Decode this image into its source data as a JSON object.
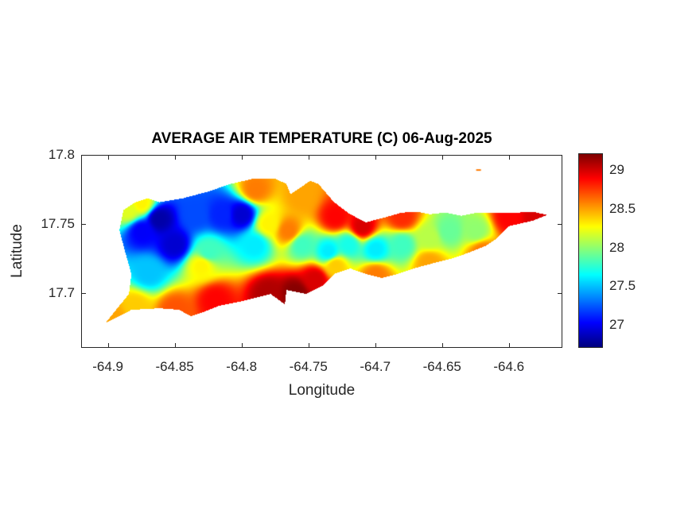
{
  "chart_data": {
    "type": "heatmap",
    "title": "AVERAGE AIR TEMPERATURE (C) 06-Aug-2025",
    "xlabel": "Longitude",
    "ylabel": "Latitude",
    "xlim": [
      -64.92,
      -64.56
    ],
    "ylim": [
      17.66,
      17.8
    ],
    "xticks": [
      -64.9,
      -64.85,
      -64.8,
      -64.75,
      -64.7,
      -64.65,
      -64.6
    ],
    "xtick_labels": [
      "-64.9",
      "-64.85",
      "-64.8",
      "-64.75",
      "-64.7",
      "-64.65",
      "-64.6"
    ],
    "yticks": [
      17.8,
      17.75,
      17.7
    ],
    "ytick_labels": [
      "17.8",
      "17.75",
      "17.7"
    ],
    "colormap": "jet",
    "clim": [
      26.7,
      29.22
    ],
    "colorbar_ticks": [
      29,
      28.5,
      28,
      27.5,
      27
    ],
    "colorbar_tick_labels": [
      "29",
      "28.5",
      "28",
      "27.5",
      "27"
    ],
    "island_outline": [
      [
        -64.9018,
        17.6786
      ],
      [
        -64.8917,
        17.6908
      ],
      [
        -64.8845,
        17.6994
      ],
      [
        -64.8827,
        17.7139
      ],
      [
        -64.8869,
        17.7283
      ],
      [
        -64.8917,
        17.7457
      ],
      [
        -64.8887,
        17.7601
      ],
      [
        -64.8798,
        17.7659
      ],
      [
        -64.8708,
        17.7688
      ],
      [
        -64.8619,
        17.7659
      ],
      [
        -64.8441,
        17.7688
      ],
      [
        -64.8262,
        17.7734
      ],
      [
        -64.8084,
        17.7792
      ],
      [
        -64.7905,
        17.7832
      ],
      [
        -64.7756,
        17.7832
      ],
      [
        -64.7667,
        17.7792
      ],
      [
        -64.7637,
        17.7717
      ],
      [
        -64.7548,
        17.7775
      ],
      [
        -64.7489,
        17.7815
      ],
      [
        -64.7429,
        17.7792
      ],
      [
        -64.731,
        17.7659
      ],
      [
        -64.7191,
        17.7572
      ],
      [
        -64.7072,
        17.7514
      ],
      [
        -64.6953,
        17.7543
      ],
      [
        -64.6804,
        17.7584
      ],
      [
        -64.6685,
        17.759
      ],
      [
        -64.6596,
        17.7572
      ],
      [
        -64.6477,
        17.7584
      ],
      [
        -64.6358,
        17.7561
      ],
      [
        -64.6239,
        17.7584
      ],
      [
        -64.612,
        17.7584
      ],
      [
        -64.5942,
        17.7584
      ],
      [
        -64.5823,
        17.759
      ],
      [
        -64.5716,
        17.7567
      ],
      [
        -64.5823,
        17.7526
      ],
      [
        -64.6001,
        17.7486
      ],
      [
        -64.609,
        17.7399
      ],
      [
        -64.618,
        17.7341
      ],
      [
        -64.6299,
        17.7295
      ],
      [
        -64.6418,
        17.7254
      ],
      [
        -64.6537,
        17.7225
      ],
      [
        -64.6715,
        17.7179
      ],
      [
        -64.6834,
        17.7139
      ],
      [
        -64.6953,
        17.711
      ],
      [
        -64.7072,
        17.7139
      ],
      [
        -64.7191,
        17.7179
      ],
      [
        -64.731,
        17.7139
      ],
      [
        -64.74,
        17.7052
      ],
      [
        -64.7518,
        17.6994
      ],
      [
        -64.7667,
        17.7023
      ],
      [
        -64.7679,
        17.6919
      ],
      [
        -64.7786,
        17.6994
      ],
      [
        -64.7905,
        17.6965
      ],
      [
        -64.8024,
        17.6936
      ],
      [
        -64.8173,
        17.6908
      ],
      [
        -64.8292,
        17.6861
      ],
      [
        -64.8381,
        17.6832
      ],
      [
        -64.847,
        17.6879
      ],
      [
        -64.8619,
        17.689
      ],
      [
        -64.8827,
        17.6879
      ],
      [
        -64.8917,
        17.6832
      ]
    ],
    "islet": [
      -64.6227,
      17.789,
      28.6
    ],
    "samples": [
      [
        -64.862,
        17.754,
        26.8
      ],
      [
        -64.85,
        17.735,
        26.9
      ],
      [
        -64.875,
        17.745,
        27.0
      ],
      [
        -64.835,
        17.757,
        27.2
      ],
      [
        -64.815,
        17.757,
        27.1
      ],
      [
        -64.8,
        17.757,
        26.9
      ],
      [
        -64.825,
        17.73,
        27.8
      ],
      [
        -64.87,
        17.715,
        27.5
      ],
      [
        -64.79,
        17.735,
        27.6
      ],
      [
        -64.78,
        17.75,
        28.3
      ],
      [
        -64.765,
        17.745,
        28.6
      ],
      [
        -64.755,
        17.735,
        27.8
      ],
      [
        -64.735,
        17.73,
        27.6
      ],
      [
        -64.72,
        17.735,
        27.7
      ],
      [
        -64.7,
        17.732,
        27.6
      ],
      [
        -64.68,
        17.735,
        27.8
      ],
      [
        -64.66,
        17.74,
        28.1
      ],
      [
        -64.645,
        17.745,
        27.9
      ],
      [
        -64.625,
        17.745,
        28.0
      ],
      [
        -64.79,
        17.775,
        28.6
      ],
      [
        -64.755,
        17.77,
        28.5
      ],
      [
        -64.73,
        17.755,
        28.9
      ],
      [
        -64.71,
        17.748,
        29.0
      ],
      [
        -64.68,
        17.755,
        28.8
      ],
      [
        -64.6,
        17.755,
        28.9
      ],
      [
        -64.58,
        17.756,
        29.0
      ],
      [
        -64.62,
        17.73,
        28.6
      ],
      [
        -64.76,
        17.7,
        29.2
      ],
      [
        -64.78,
        17.7,
        29.1
      ],
      [
        -64.82,
        17.695,
        28.9
      ],
      [
        -64.85,
        17.687,
        28.7
      ],
      [
        -64.745,
        17.71,
        29.0
      ],
      [
        -64.88,
        17.69,
        28.4
      ],
      [
        -64.895,
        17.682,
        28.5
      ],
      [
        -64.7,
        17.713,
        28.6
      ],
      [
        -64.66,
        17.722,
        28.5
      ],
      [
        -64.885,
        17.76,
        28.2
      ],
      [
        -64.875,
        17.765,
        28.3
      ],
      [
        -64.83,
        17.72,
        28.3
      ],
      [
        -64.73,
        17.72,
        28.4
      ]
    ]
  }
}
